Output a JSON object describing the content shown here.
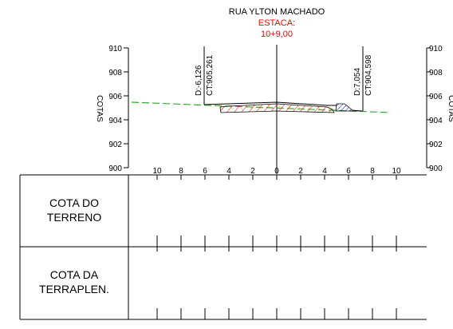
{
  "title": {
    "street": "RUA YLTON MACHADO",
    "station_label": "ESTACA:",
    "station_value": "10+9,00",
    "station_color": "#ff0000"
  },
  "axes": {
    "y_label_left": "COTAS",
    "y_label_right": "COTAS",
    "y_ticks": [
      "910",
      "908",
      "906",
      "904",
      "902",
      "900"
    ],
    "y_range": [
      900,
      910
    ],
    "x_ticks_left": [
      "10",
      "8",
      "6",
      "4",
      "2"
    ],
    "x_tick_center": "0",
    "x_ticks_right": [
      "2",
      "4",
      "6",
      "8",
      "10"
    ],
    "x_range": [
      -10,
      10
    ]
  },
  "offsets": {
    "left": {
      "distance": "D:-6,126",
      "elevation": "CT:905,261"
    },
    "right": {
      "distance": "D:7,054",
      "elevation": "CT:904,598"
    }
  },
  "table": {
    "row1_label_line1": "COTA DO",
    "row1_label_line2": "TERRENO",
    "row2_label_line1": "COTA DA",
    "row2_label_line2": "TERRAPLEN."
  },
  "colors": {
    "terrain_line": "#33aa33",
    "cut_hatch": "#ff0000",
    "fill_hatch": "#0000ff",
    "pavement_hatch": "#ffaa00"
  }
}
